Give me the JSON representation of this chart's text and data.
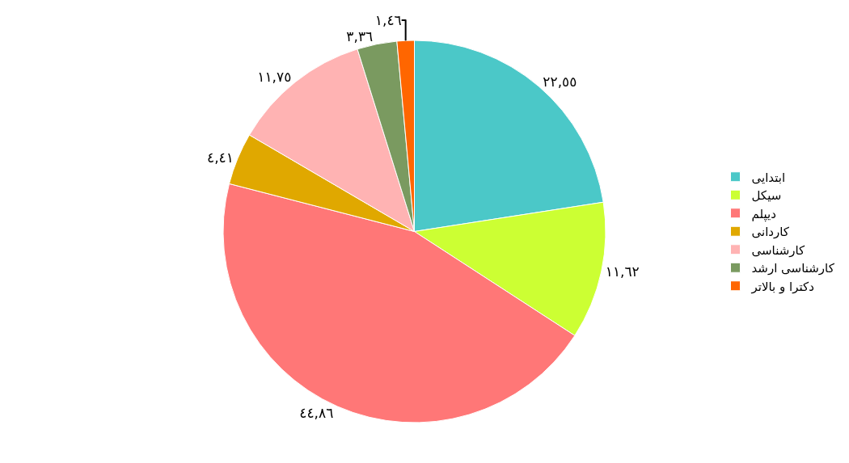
{
  "chart_data": {
    "type": "pie",
    "categories": [
      "ابتدایی",
      "سیکل",
      "دیپلم",
      "کاردانی",
      "کارشناسی",
      "کارشناسی ارشد",
      "دکترا و بالاتر"
    ],
    "values": [
      22.55,
      11.62,
      44.86,
      4.41,
      11.75,
      3.36,
      1.46
    ],
    "value_labels": [
      "٢٢,٥٥",
      "١١,٦٢",
      "٤٤,٨٦",
      "٤,٤١",
      "١١,٧٥",
      "٣,٣٦",
      "١,٤٦"
    ],
    "colors": [
      "#4bc8c8",
      "#ccff33",
      "#ff7777",
      "#e0a800",
      "#ffb3b3",
      "#7a9a60",
      "#ff6600"
    ],
    "legend": "right"
  }
}
